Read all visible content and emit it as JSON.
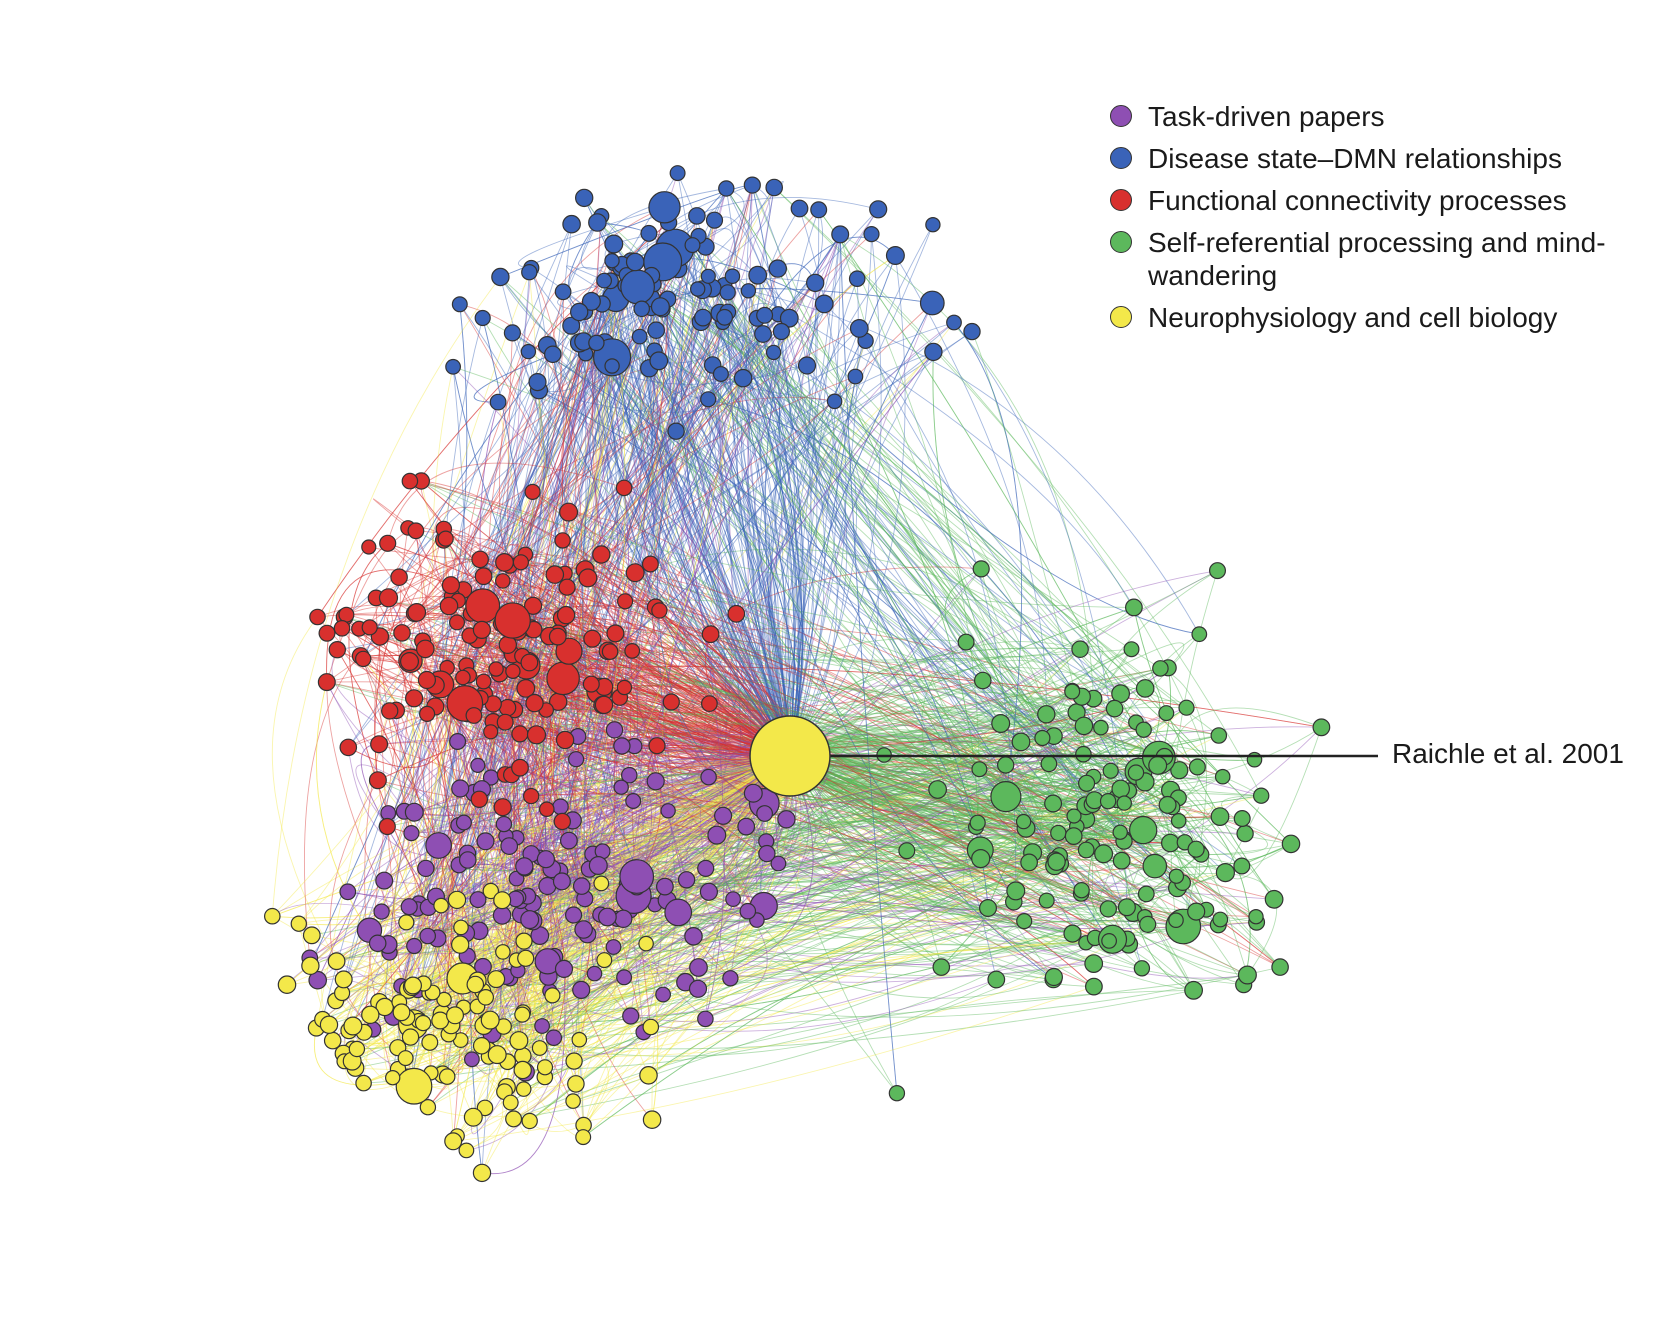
{
  "legend": {
    "items": [
      {
        "label": "Task-driven papers",
        "color": "#8e4fb3"
      },
      {
        "label": "Disease state–DMN relationships",
        "color": "#3a63b8"
      },
      {
        "label": "Functional connectivity processes",
        "color": "#d8302e"
      },
      {
        "label": "Self-referential processing and mind-wandering",
        "color": "#5cb85c"
      },
      {
        "label": "Neurophysiology and cell biology",
        "color": "#f3e84a"
      }
    ]
  },
  "annotation": {
    "label": "Raichle et al. 2001",
    "node_color": "#f3e84a"
  }
}
